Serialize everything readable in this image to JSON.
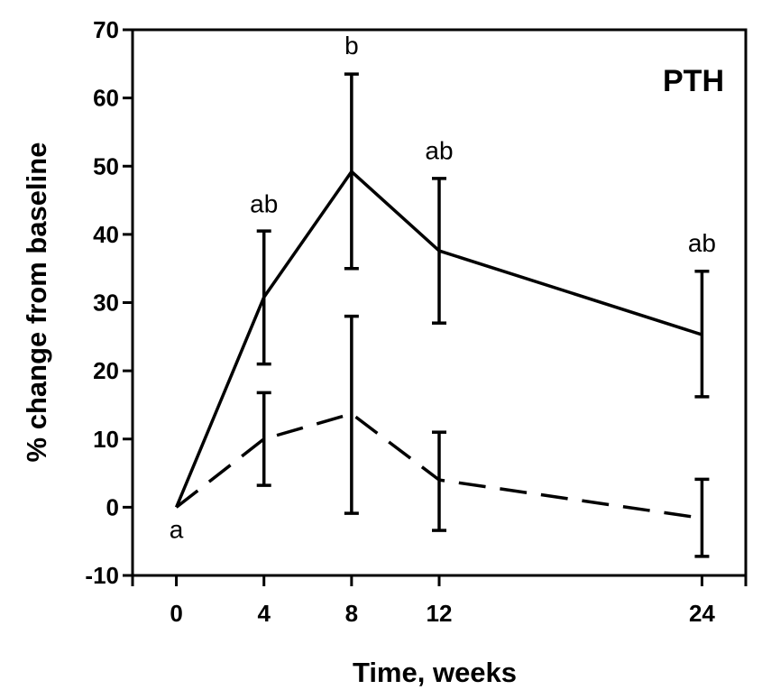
{
  "chart_data": {
    "type": "line",
    "title": "",
    "panel_label": "PTH",
    "xlabel": "Time, weeks",
    "ylabel": "% change from baseline",
    "x": [
      0,
      4,
      8,
      12,
      24
    ],
    "x_ticks": [
      "0",
      "4",
      "8",
      "12",
      "24"
    ],
    "xlim": [
      -2,
      26
    ],
    "ylim": [
      -10,
      70
    ],
    "y_ticks": [
      "-10",
      "0",
      "10",
      "20",
      "30",
      "40",
      "50",
      "60",
      "70"
    ],
    "grid": false,
    "series": [
      {
        "name": "solid",
        "style": "solid",
        "values": [
          0,
          30.8,
          49.2,
          37.6,
          25.3
        ],
        "err_low": [
          null,
          21.0,
          35.0,
          27.0,
          16.2
        ],
        "err_high": [
          null,
          40.5,
          63.5,
          48.2,
          34.6
        ]
      },
      {
        "name": "dashed",
        "style": "dashed",
        "values": [
          0,
          10.0,
          13.7,
          4.0,
          -1.6
        ],
        "err_low": [
          null,
          3.2,
          -0.9,
          -3.4,
          -7.2
        ],
        "err_high": [
          null,
          16.8,
          28.0,
          11.0,
          4.1
        ]
      }
    ],
    "annotations": [
      {
        "text": "a",
        "x": 0,
        "y": -4.5
      },
      {
        "text": "ab",
        "x": 4,
        "y": 43.2
      },
      {
        "text": "b",
        "x": 8,
        "y": 66.4
      },
      {
        "text": "ab",
        "x": 12,
        "y": 51.0
      },
      {
        "text": "ab",
        "x": 24,
        "y": 37.5
      }
    ]
  }
}
